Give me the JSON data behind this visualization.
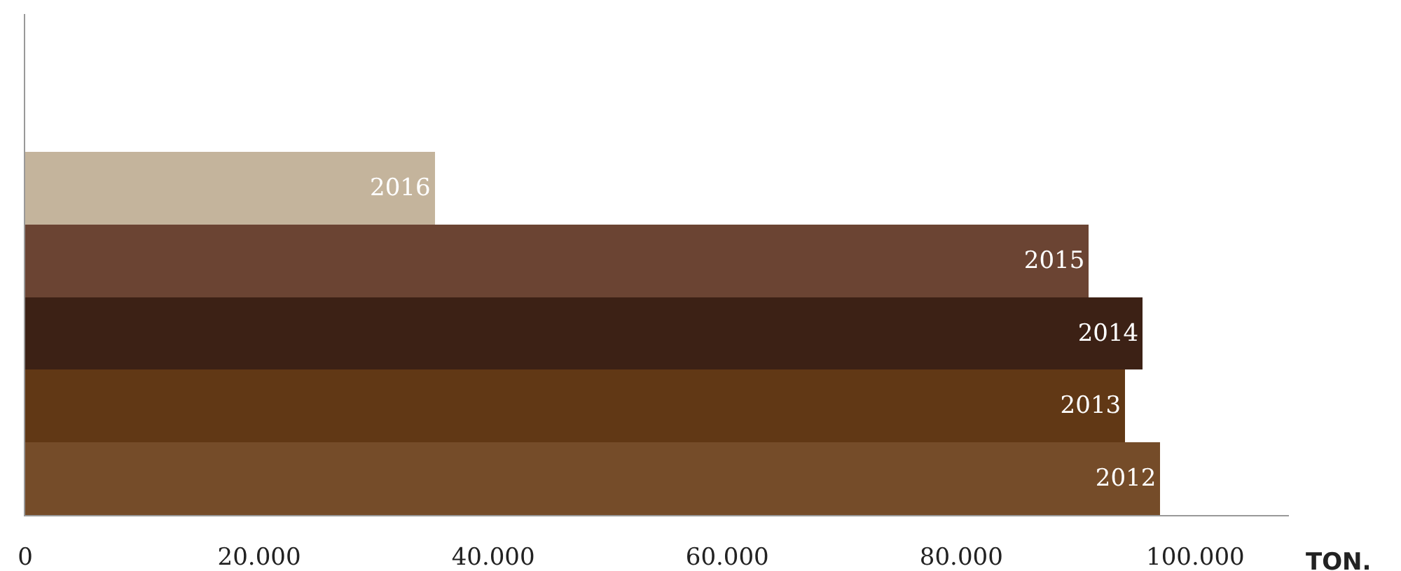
{
  "chart_data": {
    "type": "bar",
    "orientation": "horizontal",
    "xlabel": "TON.",
    "categories": [
      "2016",
      "2015",
      "2014",
      "2013",
      "2012"
    ],
    "values": [
      35000,
      90900,
      95500,
      94000,
      97000
    ],
    "colors": [
      "#c4b49c",
      "#6b4433",
      "#3c2115",
      "#613815",
      "#754c29"
    ],
    "xlim": [
      0,
      108000
    ],
    "xticks": [
      0,
      {
        "value": 20000,
        "label": "20.000"
      },
      {
        "value": 40000,
        "label": "40.000"
      },
      {
        "value": 60000,
        "label": "60.000"
      },
      {
        "value": 80000,
        "label": "80.000"
      },
      {
        "value": 100000,
        "label": "100.000"
      }
    ],
    "grid": false,
    "legend": false
  }
}
